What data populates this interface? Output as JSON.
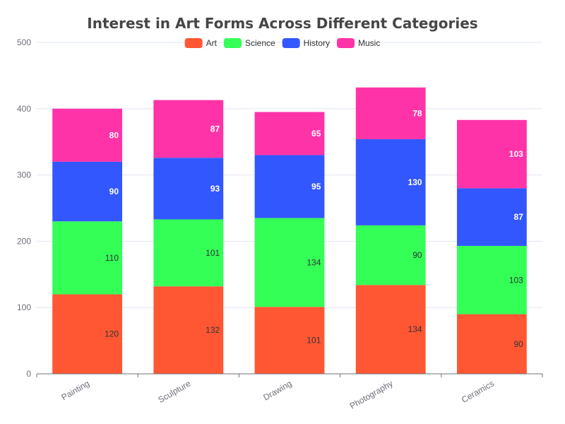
{
  "chart_data": {
    "type": "bar",
    "stacked": true,
    "title": "Interest in Art Forms Across Different Categories",
    "categories": [
      "Painting",
      "Sculpture",
      "Drawing",
      "Photography",
      "Ceramics"
    ],
    "series": [
      {
        "name": "Art",
        "color": "#ff5733",
        "values": [
          120,
          132,
          101,
          134,
          90
        ]
      },
      {
        "name": "Science",
        "color": "#33ff57",
        "values": [
          110,
          101,
          134,
          90,
          103
        ]
      },
      {
        "name": "History",
        "color": "#3357ff",
        "values": [
          90,
          93,
          95,
          130,
          87
        ]
      },
      {
        "name": "Music",
        "color": "#ff33a8",
        "values": [
          80,
          87,
          65,
          78,
          103
        ]
      }
    ],
    "ylim": [
      0,
      500
    ],
    "yticks": [
      0,
      100,
      200,
      300,
      400,
      500
    ],
    "xlabel": "",
    "ylabel": "",
    "grid": true,
    "legend_position": "top-center",
    "xtick_rotation": -30
  }
}
